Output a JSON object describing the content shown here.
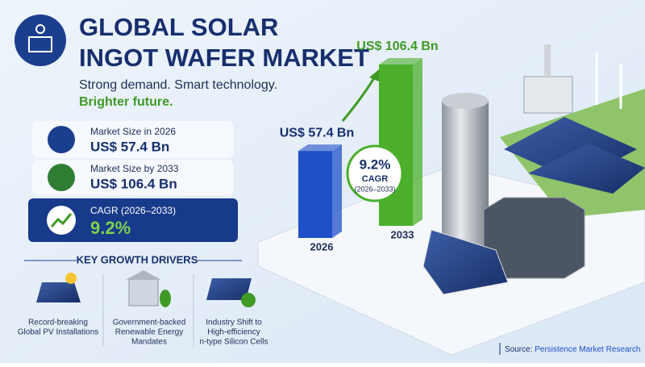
{
  "header": {
    "title_lines": [
      "GLOBAL SOLAR",
      "INGOT WAFER MARKET"
    ],
    "tagline": "Strong demand. Smart technology.",
    "tagline_accent": "Brighter future."
  },
  "stats": [
    {
      "label": "Market Size in 2026",
      "value": "US$ 57.4 Bn"
    },
    {
      "label": "Market Size by 2033",
      "value": "US$ 106.4 Bn"
    },
    {
      "label": "CAGR (2026–2033)",
      "value": "9.2%"
    }
  ],
  "drivers": {
    "title": "KEY GROWTH DRIVERS",
    "items": [
      [
        "Record-breaking",
        "Global PV Installations"
      ],
      [
        "Government-backed",
        "Renewable Energy",
        "Mandates"
      ],
      [
        "Industry Shift to",
        "High-efficiency",
        "n-type Silicon Cells"
      ]
    ]
  },
  "chart_data": {
    "type": "bar",
    "categories": [
      "2026",
      "2033"
    ],
    "values": [
      57.4,
      106.4
    ],
    "value_labels": [
      "US$ 57.4 Bn",
      "US$ 106.4 Bn"
    ],
    "colors": [
      "#1f50c8",
      "#4caf2c"
    ]
  },
  "cagr_badge": {
    "value": "9.2%",
    "label": "CAGR",
    "period": "(2026–2033)"
  },
  "source": {
    "label": "Source:",
    "text": "Persistence Market Research"
  }
}
